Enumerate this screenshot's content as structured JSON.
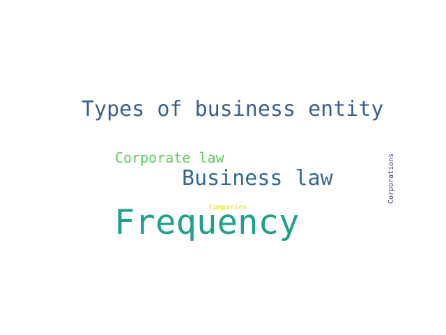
{
  "words": [
    {
      "text": "Types of business entity",
      "color": "#3b5e8c"
    },
    {
      "text": "Corporate law",
      "color": "#5ec962"
    },
    {
      "text": "Business law",
      "color": "#31688e"
    },
    {
      "text": "Companies",
      "color": "#d8e219"
    },
    {
      "text": "Frequency",
      "color": "#21a08a"
    },
    {
      "text": "Corporations",
      "color": "#46337e"
    }
  ]
}
